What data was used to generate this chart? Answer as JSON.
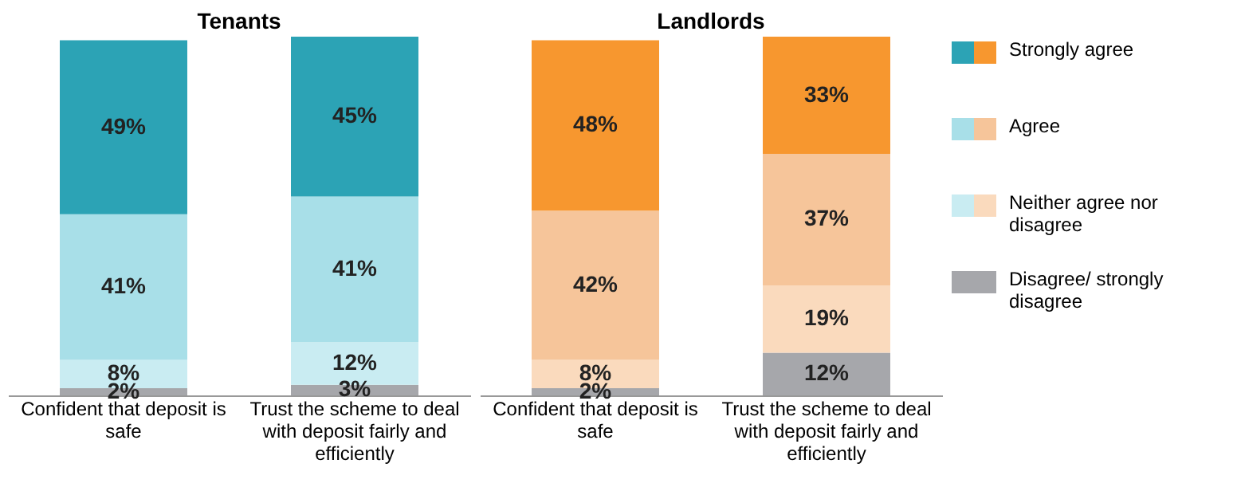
{
  "chart_data": [
    {
      "type": "bar",
      "title": "Tenants",
      "stacked": true,
      "legend": "right",
      "categories": [
        "Confident that deposit is safe",
        "Trust the scheme to deal with deposit fairly and efficiently"
      ],
      "series": [
        {
          "name": "Disagree/ strongly disagree",
          "color": "#a6a7ab",
          "values": [
            2,
            3
          ],
          "value_labels": [
            "2%",
            "3%"
          ]
        },
        {
          "name": "Neither agree nor disagree",
          "color": "#c9ecf2",
          "values": [
            8,
            12
          ],
          "value_labels": [
            "8%",
            "12%"
          ]
        },
        {
          "name": "Agree",
          "color": "#a8dfe8",
          "values": [
            41,
            41
          ],
          "value_labels": [
            "41%",
            "41%"
          ]
        },
        {
          "name": "Strongly agree",
          "color": "#2ca3b5",
          "values": [
            49,
            45
          ],
          "value_labels": [
            "49%",
            "45%"
          ]
        }
      ]
    },
    {
      "type": "bar",
      "title": "Landlords",
      "stacked": true,
      "legend": "right",
      "categories": [
        "Confident that deposit is safe",
        "Trust the scheme to deal with deposit fairly and efficiently"
      ],
      "series": [
        {
          "color": "#a6a7ab",
          "values": [
            2,
            12
          ],
          "value_labels": [
            "2%",
            "12%"
          ]
        },
        {
          "color": "#fadabd",
          "values": [
            8,
            19
          ],
          "value_labels": [
            "8%",
            "19%"
          ]
        },
        {
          "color": "#f6c59a",
          "values": [
            42,
            37
          ],
          "value_labels": [
            "42%",
            "37%"
          ]
        },
        {
          "color": "#f7972f",
          "values": [
            48,
            33
          ],
          "value_labels": [
            "48%",
            "33%"
          ]
        }
      ]
    }
  ]
}
